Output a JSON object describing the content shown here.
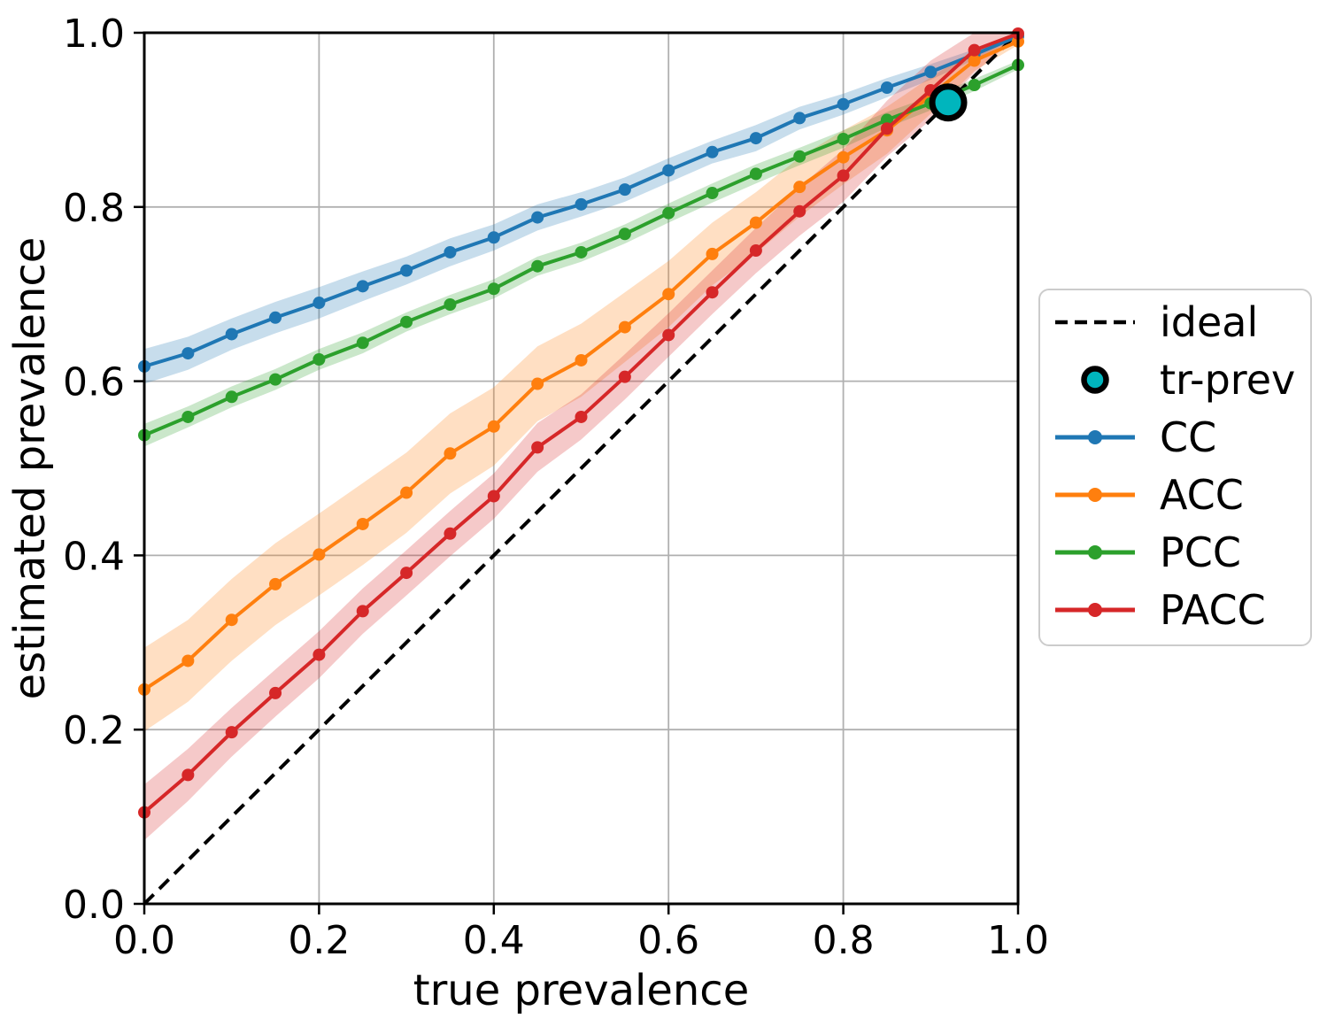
{
  "figure": {
    "background": "#ffffff"
  },
  "chart_data": {
    "type": "line",
    "title": "",
    "xlabel": "true prevalence",
    "ylabel": "estimated prevalence",
    "xlim": [
      0.0,
      1.0
    ],
    "ylim": [
      0.0,
      1.0
    ],
    "grid": true,
    "grid_color": "#b0b0b0",
    "band_opacity": 0.25,
    "x_ticks": {
      "values": [
        0.0,
        0.2,
        0.4,
        0.6,
        0.8,
        1.0
      ],
      "labels": [
        "0.0",
        "0.2",
        "0.4",
        "0.6",
        "0.8",
        "1.0"
      ]
    },
    "y_ticks": {
      "values": [
        0.0,
        0.2,
        0.4,
        0.6,
        0.8,
        1.0
      ],
      "labels": [
        "0.0",
        "0.2",
        "0.4",
        "0.6",
        "0.8",
        "1.0"
      ]
    },
    "x": [
      0.0,
      0.05,
      0.1,
      0.15,
      0.2,
      0.25,
      0.3,
      0.35,
      0.4,
      0.45,
      0.5,
      0.55,
      0.6,
      0.65,
      0.7,
      0.75,
      0.8,
      0.85,
      0.9,
      0.95,
      1.0
    ],
    "series": [
      {
        "name": "CC",
        "color": "#1f77b4",
        "values": [
          0.617,
          0.632,
          0.654,
          0.673,
          0.69,
          0.709,
          0.727,
          0.748,
          0.765,
          0.788,
          0.803,
          0.82,
          0.842,
          0.863,
          0.879,
          0.902,
          0.918,
          0.937,
          0.955,
          0.975,
          0.996
        ],
        "band": [
          0.02,
          0.019,
          0.018,
          0.018,
          0.018,
          0.017,
          0.016,
          0.016,
          0.015,
          0.015,
          0.014,
          0.014,
          0.014,
          0.013,
          0.015,
          0.013,
          0.012,
          0.011,
          0.009,
          0.006,
          0.002
        ]
      },
      {
        "name": "ACC",
        "color": "#ff7f0e",
        "values": [
          0.246,
          0.279,
          0.326,
          0.367,
          0.401,
          0.436,
          0.472,
          0.517,
          0.548,
          0.597,
          0.624,
          0.662,
          0.7,
          0.746,
          0.782,
          0.823,
          0.857,
          0.888,
          0.928,
          0.968,
          0.99
        ],
        "band": [
          0.048,
          0.047,
          0.047,
          0.047,
          0.047,
          0.047,
          0.046,
          0.046,
          0.045,
          0.043,
          0.042,
          0.04,
          0.038,
          0.036,
          0.035,
          0.034,
          0.031,
          0.027,
          0.021,
          0.012,
          0.004
        ]
      },
      {
        "name": "PCC",
        "color": "#2ca02c",
        "values": [
          0.538,
          0.559,
          0.582,
          0.602,
          0.625,
          0.644,
          0.668,
          0.688,
          0.706,
          0.732,
          0.748,
          0.769,
          0.793,
          0.816,
          0.838,
          0.858,
          0.878,
          0.9,
          0.919,
          0.94,
          0.963
        ],
        "band": [
          0.013,
          0.012,
          0.012,
          0.012,
          0.012,
          0.012,
          0.011,
          0.011,
          0.011,
          0.011,
          0.011,
          0.011,
          0.011,
          0.011,
          0.011,
          0.01,
          0.01,
          0.009,
          0.008,
          0.007,
          0.005
        ]
      },
      {
        "name": "PACC",
        "color": "#d62728",
        "values": [
          0.105,
          0.148,
          0.197,
          0.242,
          0.286,
          0.336,
          0.38,
          0.425,
          0.468,
          0.524,
          0.559,
          0.605,
          0.653,
          0.702,
          0.75,
          0.795,
          0.836,
          0.89,
          0.934,
          0.98,
          0.999
        ],
        "band": [
          0.032,
          0.03,
          0.028,
          0.027,
          0.027,
          0.026,
          0.026,
          0.026,
          0.026,
          0.028,
          0.026,
          0.026,
          0.025,
          0.025,
          0.026,
          0.028,
          0.03,
          0.032,
          0.034,
          0.026,
          0.003
        ]
      }
    ],
    "ideal_line": {
      "label": "ideal",
      "color": "#000000",
      "style": "dashed",
      "from": [
        0.0,
        0.0
      ],
      "to": [
        1.0,
        1.0
      ]
    },
    "tr_prev": {
      "label": "tr-prev",
      "x": 0.92,
      "y": 0.92,
      "fill": "#00b5bd",
      "edge": "#000000"
    },
    "legend": {
      "position": "right",
      "items": [
        {
          "label": "ideal",
          "marker": "dashed-line",
          "color": "#000000"
        },
        {
          "label": "tr-prev",
          "marker": "circle",
          "color": "#00b5bd",
          "edge": "#000000"
        },
        {
          "label": "CC",
          "marker": "line-dot",
          "color": "#1f77b4"
        },
        {
          "label": "ACC",
          "marker": "line-dot",
          "color": "#ff7f0e"
        },
        {
          "label": "PCC",
          "marker": "line-dot",
          "color": "#2ca02c"
        },
        {
          "label": "PACC",
          "marker": "line-dot",
          "color": "#d62728"
        }
      ]
    }
  }
}
